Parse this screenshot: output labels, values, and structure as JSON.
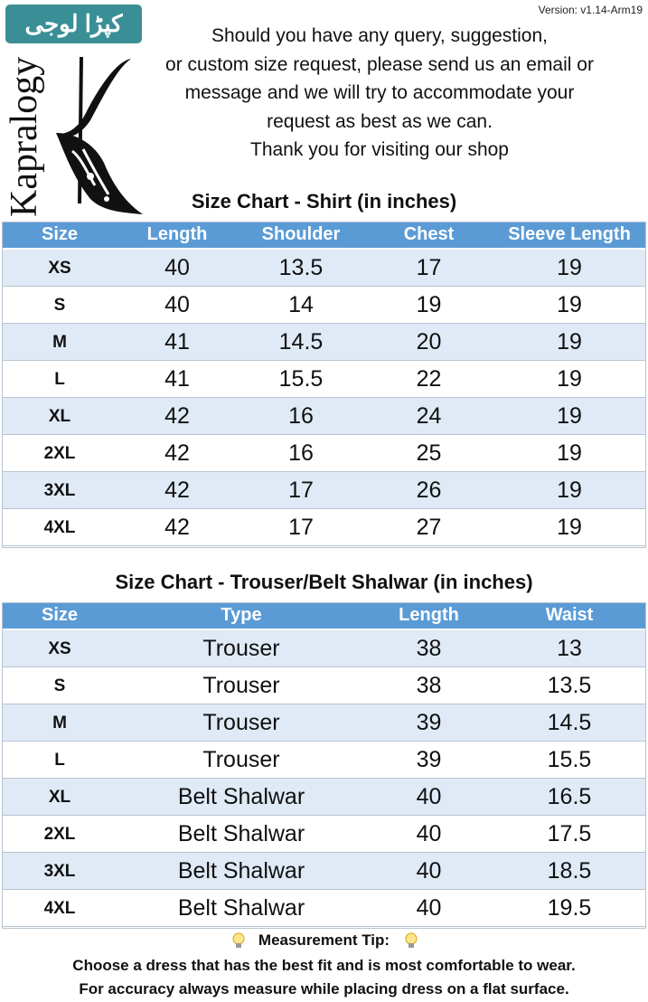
{
  "header": {
    "version": "Version: v1.14-Arm19",
    "badge": "کپڑا لوجی",
    "brand": "Kapralogy",
    "message": [
      "Should you have any query, suggestion,",
      "or custom size request, please send us an email or",
      "message and we will try to accommodate your",
      "request as best as we can.",
      "Thank you for visiting our shop"
    ]
  },
  "shirt_table": {
    "title": "Size Chart - Shirt (in inches)",
    "columns": [
      "Size",
      "Length",
      "Shoulder",
      "Chest",
      "Sleeve Length"
    ],
    "rows": [
      [
        "XS",
        40,
        13.5,
        17,
        19
      ],
      [
        "S",
        40,
        14,
        19,
        19
      ],
      [
        "M",
        41,
        14.5,
        20,
        19
      ],
      [
        "L",
        41,
        15.5,
        22,
        19
      ],
      [
        "XL",
        42,
        16,
        24,
        19
      ],
      [
        "2XL",
        42,
        16,
        25,
        19
      ],
      [
        "3XL",
        42,
        17,
        26,
        19
      ],
      [
        "4XL",
        42,
        17,
        27,
        19
      ]
    ]
  },
  "trouser_table": {
    "title": "Size Chart - Trouser/Belt Shalwar (in inches)",
    "columns": [
      "Size",
      "Type",
      "Length",
      "Waist"
    ],
    "rows": [
      [
        "XS",
        "Trouser",
        38,
        13
      ],
      [
        "S",
        "Trouser",
        38,
        13.5
      ],
      [
        "M",
        "Trouser",
        39,
        14.5
      ],
      [
        "L",
        "Trouser",
        39,
        15.5
      ],
      [
        "XL",
        "Belt Shalwar",
        40,
        16.5
      ],
      [
        "2XL",
        "Belt Shalwar",
        40,
        17.5
      ],
      [
        "3XL",
        "Belt Shalwar",
        40,
        18.5
      ],
      [
        "4XL",
        "Belt Shalwar",
        40,
        19.5
      ]
    ]
  },
  "tip": {
    "title": "Measurement Tip:",
    "lines": [
      "Choose a dress that has the best fit and is most comfortable to wear.",
      "For accuracy always measure while placing dress on a flat surface."
    ]
  }
}
